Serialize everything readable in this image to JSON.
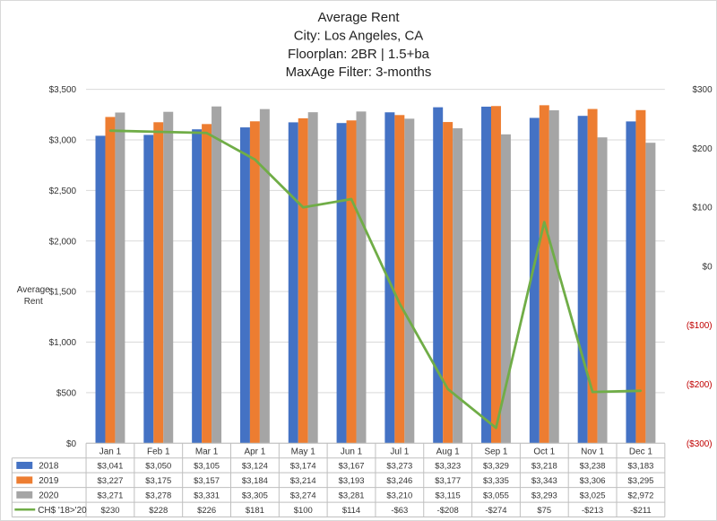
{
  "chart_data": {
    "type": "bar",
    "title_lines": [
      "Average Rent",
      "City: Los Angeles, CA",
      "Floorplan:  2BR | 1.5+ba",
      "MaxAge Filter: 3-months"
    ],
    "ylabel_lines": [
      "Average",
      "Rent"
    ],
    "categories": [
      "Jan 1",
      "Feb 1",
      "Mar 1",
      "Apr 1",
      "May 1",
      "Jun 1",
      "Jul 1",
      "Aug 1",
      "Sep 1",
      "Oct 1",
      "Nov 1",
      "Dec 1"
    ],
    "ylim": [
      0,
      3500
    ],
    "yticks": [
      0,
      500,
      1000,
      1500,
      2000,
      2500,
      3000,
      3500
    ],
    "ytick_labels": [
      "$0",
      "$500",
      "$1,000",
      "$1,500",
      "$2,000",
      "$2,500",
      "$3,000",
      "$3,500"
    ],
    "y2lim": [
      -300,
      300
    ],
    "y2ticks": [
      300,
      200,
      100,
      0,
      -100,
      -200,
      -300
    ],
    "y2tick_labels": [
      "$300",
      "$200",
      "$100",
      "$0",
      "($100)",
      "($200)",
      "($300)"
    ],
    "grid": true,
    "legend": "data-table-bottom",
    "series": [
      {
        "name": "2018",
        "kind": "bar",
        "color": "#4472C4",
        "values": [
          3041,
          3050,
          3105,
          3124,
          3174,
          3167,
          3273,
          3323,
          3329,
          3218,
          3238,
          3183
        ],
        "labels": [
          "$3,041",
          "$3,050",
          "$3,105",
          "$3,124",
          "$3,174",
          "$3,167",
          "$3,273",
          "$3,323",
          "$3,329",
          "$3,218",
          "$3,238",
          "$3,183"
        ]
      },
      {
        "name": "2019",
        "kind": "bar",
        "color": "#ED7D31",
        "values": [
          3227,
          3175,
          3157,
          3184,
          3214,
          3193,
          3246,
          3177,
          3335,
          3343,
          3306,
          3295
        ],
        "labels": [
          "$3,227",
          "$3,175",
          "$3,157",
          "$3,184",
          "$3,214",
          "$3,193",
          "$3,246",
          "$3,177",
          "$3,335",
          "$3,343",
          "$3,306",
          "$3,295"
        ]
      },
      {
        "name": "2020",
        "kind": "bar",
        "color": "#A5A5A5",
        "values": [
          3271,
          3278,
          3331,
          3305,
          3274,
          3281,
          3210,
          3115,
          3055,
          3293,
          3025,
          2972
        ],
        "labels": [
          "$3,271",
          "$3,278",
          "$3,331",
          "$3,305",
          "$3,274",
          "$3,281",
          "$3,210",
          "$3,115",
          "$3,055",
          "$3,293",
          "$3,025",
          "$2,972"
        ]
      },
      {
        "name": "CH$ '18>'20",
        "kind": "line",
        "axis": "right",
        "color": "#70AD47",
        "values": [
          230,
          228,
          226,
          181,
          100,
          114,
          -63,
          -208,
          -274,
          75,
          -213,
          -211
        ],
        "labels": [
          "$230",
          "$228",
          "$226",
          "$181",
          "$100",
          "$114",
          "-$63",
          "-$208",
          "-$274",
          "$75",
          "-$213",
          "-$211"
        ]
      }
    ],
    "colors": {
      "axis_right_positive": "#333333",
      "axis_right_negative": "#C00000",
      "grid": "#D9D9D9"
    }
  }
}
